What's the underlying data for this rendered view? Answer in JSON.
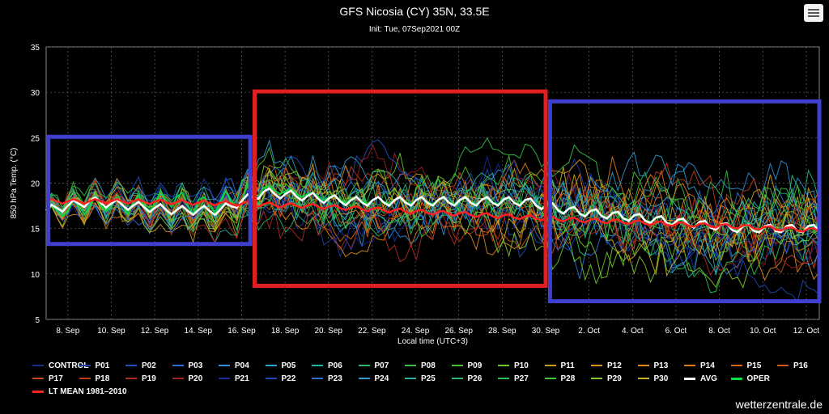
{
  "header": {
    "title": "GFS Nicosia (CY) 35N, 33.5E",
    "subtitle": "Init: Tue, 07Sep2021 00Z"
  },
  "menu": {
    "icon": "hamburger-menu-icon"
  },
  "credit": "wetterzentrale.de",
  "chart_data": {
    "type": "line",
    "ylabel": "850 hPa Temp. (°C)",
    "xlabel": "Local time (UTC+3)",
    "ylim": [
      5,
      35
    ],
    "yticks": [
      5,
      10,
      15,
      20,
      25,
      30,
      35
    ],
    "xlim_days": [
      "07Sep",
      "12.6Oct"
    ],
    "xticks": [
      "8. Sep",
      "10. Sep",
      "12. Sep",
      "14. Sep",
      "16. Sep",
      "18. Sep",
      "20. Sep",
      "22. Sep",
      "24. Sep",
      "26. Sep",
      "28. Sep",
      "30. Sep",
      "2. Oct",
      "4. Oct",
      "6. Oct",
      "8. Oct",
      "10. Oct",
      "12. Oct"
    ],
    "grid": true,
    "legend_position": "bottom",
    "series_colors": {
      "CONTROL": "#1e2a8c",
      "P01": "#1f3fa8",
      "P02": "#1e4fc0",
      "P03": "#2a6fd6",
      "P04": "#2f8fd8",
      "P05": "#2aa6c8",
      "P06": "#20b5a0",
      "P07": "#2ab870",
      "P08": "#35c04a",
      "P09": "#4ac030",
      "P10": "#6cc828",
      "P11": "#c8a020",
      "P12": "#d89020",
      "P13": "#e08a1a",
      "P14": "#e07a18",
      "P15": "#d86818",
      "P16": "#d05818",
      "P17": "#c84a18",
      "P18": "#c03a18",
      "P19": "#b02a20",
      "P20": "#a02020",
      "P21": "#1a2d9a",
      "P22": "#1d48b8",
      "P23": "#2a70d0",
      "P24": "#2e9ad0",
      "P25": "#2ab2a2",
      "P26": "#28b878",
      "P27": "#2cc050",
      "P28": "#40c83a",
      "P29": "#80c830",
      "P30": "#c8b020",
      "AVG": "#ffffff",
      "OPER": "#00e040",
      "LT MEAN 1981–2010": "#ff2020"
    },
    "series": [
      {
        "name": "CONTROL"
      },
      {
        "name": "P01"
      },
      {
        "name": "P02"
      },
      {
        "name": "P03"
      },
      {
        "name": "P04"
      },
      {
        "name": "P05"
      },
      {
        "name": "P06"
      },
      {
        "name": "P07"
      },
      {
        "name": "P08"
      },
      {
        "name": "P09"
      },
      {
        "name": "P10"
      },
      {
        "name": "P11"
      },
      {
        "name": "P12"
      },
      {
        "name": "P13"
      },
      {
        "name": "P14"
      },
      {
        "name": "P15"
      },
      {
        "name": "P16"
      },
      {
        "name": "P17"
      },
      {
        "name": "P18"
      },
      {
        "name": "P19"
      },
      {
        "name": "P20"
      },
      {
        "name": "P21"
      },
      {
        "name": "P22"
      },
      {
        "name": "P23"
      },
      {
        "name": "P24"
      },
      {
        "name": "P25"
      },
      {
        "name": "P26"
      },
      {
        "name": "P27"
      },
      {
        "name": "P28"
      },
      {
        "name": "P29"
      },
      {
        "name": "P30"
      },
      {
        "name": "AVG"
      },
      {
        "name": "OPER"
      },
      {
        "name": "LT MEAN 1981–2010"
      }
    ],
    "avg_profile": {
      "x_days": [
        0,
        2,
        4,
        6,
        8,
        10,
        12,
        14,
        16,
        18,
        20,
        22,
        24,
        26,
        28,
        30,
        32,
        34,
        35.5
      ],
      "values": [
        17,
        18,
        17.5,
        17,
        17,
        19,
        18.5,
        18,
        18,
        18,
        18,
        18,
        17,
        16.5,
        16,
        15.5,
        15,
        15,
        15
      ]
    },
    "lt_mean_profile": {
      "x_days": [
        0,
        4,
        8,
        12,
        16,
        20,
        24,
        28,
        32,
        35.5
      ],
      "values": [
        18,
        18,
        17.8,
        17.5,
        17,
        16.5,
        16,
        15.6,
        15.2,
        14.8
      ]
    },
    "annotations": [
      {
        "type": "box",
        "color": "#4040d0",
        "from_day": 0.1,
        "to_day": 9.4,
        "y_low": 13.3,
        "y_high": 25.1
      },
      {
        "type": "box",
        "color": "#e02020",
        "from_day": 9.6,
        "to_day": 23.0,
        "y_low": 8.7,
        "y_high": 30.1
      },
      {
        "type": "box",
        "color": "#4040d0",
        "from_day": 23.2,
        "to_day": 35.6,
        "y_low": 7.0,
        "y_high": 29.0
      }
    ]
  }
}
